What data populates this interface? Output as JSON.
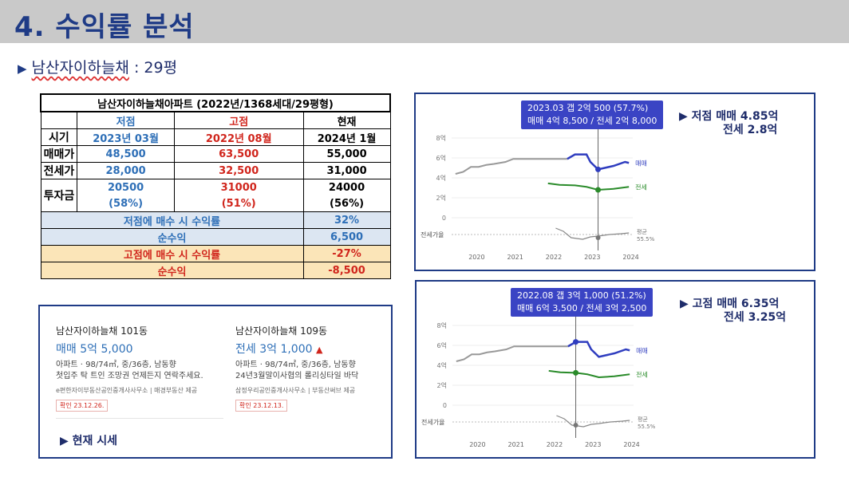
{
  "header": {
    "title": "4. 수익률 분석"
  },
  "subtitle": {
    "marker": "▶",
    "name": "남산자이하늘채",
    "size": ": 29평"
  },
  "table": {
    "title": "남산자이하늘채아파트 (2022년/1368세대/29평형)",
    "col_low": "저점",
    "col_high": "고점",
    "col_now": "현재",
    "row_period": {
      "label": "시기",
      "low": "2023년 03월",
      "high": "2022년 08월",
      "now": "2024년 1월"
    },
    "row_sale": {
      "label": "매매가",
      "low": "48,500",
      "high": "63,500",
      "now": "55,000"
    },
    "row_jeonse": {
      "label": "전세가",
      "low": "28,000",
      "high": "32,500",
      "now": "31,000"
    },
    "row_invest": {
      "label": "투자금",
      "low": "20500",
      "low_pct": "(58%)",
      "high": "31000",
      "high_pct": "(51%)",
      "now": "24000",
      "now_pct": "(56%)"
    },
    "low_return_label": "저점에 매수 시 수익률",
    "low_return_value": "32%",
    "low_net_label": "순수익",
    "low_net_value": "6,500",
    "high_return_label": "고점에 매수 시 수익률",
    "high_return_value": "-27%",
    "high_net_label": "순수익",
    "high_net_value": "-8,500"
  },
  "listings": [
    {
      "title": "남산자이하늘채 101동",
      "price": "매매 5억 5,000",
      "spec": "아파트 · 98/74㎡, 중/36층, 남동향",
      "desc": "첫입주 탁 트인 조망권 언제든지 연락주세요.",
      "agent": "e편한자이부동산공인중개사사무소 | 매경부동산 제공",
      "confirm": "확인 23.12.26."
    },
    {
      "title": "남산자이하늘채 109동",
      "price": "전세 3억 1,000",
      "spec": "아파트 · 98/74㎡, 중/36층, 남동향",
      "desc": "24년3월말이사협의 롤리싱타일 바닥",
      "agent": "삼정우리공인중개사사무소 | 부동산써브 제공",
      "confirm": "확인 23.12.13."
    }
  ],
  "current_label": "▶ 현재 시세",
  "chart_top": {
    "tooltip_line1": "2023.03  갭 2억 500 (57.7%)",
    "tooltip_line2": "매매 4억 8,500 / 전세 2억 8,000",
    "note_line1": "▶ 저점  매매 4.85억",
    "note_line2": "전세  2.8억"
  },
  "chart_bottom": {
    "tooltip_line1": "2022.08  갭 3억 1,000 (51.2%)",
    "tooltip_line2": "매매 6억 3,500 / 전세 3억 2,500",
    "note_line1": "▶ 고점  매매 6.35억",
    "note_line2": "전세  3.25억"
  },
  "chart_data": [
    {
      "type": "line",
      "y_ticks": [
        "8억",
        "6억",
        "4억",
        "2억",
        "0"
      ],
      "x_ticks": [
        "2020",
        "2021",
        "2022",
        "2023",
        "2024"
      ],
      "ylim": [
        0,
        8
      ],
      "series": [
        {
          "name": "매매",
          "color": "#2f3dbf",
          "points": [
            [
              2019.5,
              4.4
            ],
            [
              2019.7,
              4.6
            ],
            [
              2019.9,
              5.1
            ],
            [
              2020.1,
              5.1
            ],
            [
              2020.3,
              5.3
            ],
            [
              2020.5,
              5.4
            ],
            [
              2020.8,
              5.6
            ],
            [
              2021.0,
              5.9
            ],
            [
              2021.5,
              5.9
            ],
            [
              2022.1,
              5.9
            ],
            [
              2022.4,
              5.9
            ],
            [
              2022.6,
              6.35
            ],
            [
              2022.9,
              6.35
            ],
            [
              2023.0,
              5.6
            ],
            [
              2023.2,
              4.85
            ],
            [
              2023.6,
              5.2
            ],
            [
              2023.9,
              5.6
            ],
            [
              2024.0,
              5.5
            ]
          ]
        },
        {
          "name": "전세",
          "color": "#2a8b2a",
          "points": [
            [
              2021.9,
              3.45
            ],
            [
              2022.2,
              3.3
            ],
            [
              2022.6,
              3.25
            ],
            [
              2022.9,
              3.1
            ],
            [
              2023.2,
              2.8
            ],
            [
              2023.6,
              2.9
            ],
            [
              2024.0,
              3.1
            ]
          ]
        }
      ],
      "ratio_label": "전세가율",
      "ratio_avg": "평균 55.5%"
    },
    {
      "type": "line",
      "y_ticks": [
        "8억",
        "6억",
        "4억",
        "2억",
        "0"
      ],
      "x_ticks": [
        "2020",
        "2021",
        "2022",
        "2023",
        "2024"
      ],
      "ylim": [
        0,
        8
      ],
      "series": [
        {
          "name": "매매",
          "color": "#2f3dbf",
          "points": [
            [
              2019.5,
              4.4
            ],
            [
              2019.7,
              4.6
            ],
            [
              2019.9,
              5.1
            ],
            [
              2020.1,
              5.1
            ],
            [
              2020.3,
              5.3
            ],
            [
              2020.5,
              5.4
            ],
            [
              2020.8,
              5.6
            ],
            [
              2021.0,
              5.9
            ],
            [
              2021.5,
              5.9
            ],
            [
              2022.1,
              5.9
            ],
            [
              2022.4,
              5.9
            ],
            [
              2022.6,
              6.35
            ],
            [
              2022.9,
              6.35
            ],
            [
              2023.0,
              5.6
            ],
            [
              2023.2,
              4.85
            ],
            [
              2023.6,
              5.2
            ],
            [
              2023.9,
              5.6
            ],
            [
              2024.0,
              5.5
            ]
          ]
        },
        {
          "name": "전세",
          "color": "#2a8b2a",
          "points": [
            [
              2021.9,
              3.45
            ],
            [
              2022.2,
              3.3
            ],
            [
              2022.6,
              3.25
            ],
            [
              2022.9,
              3.1
            ],
            [
              2023.2,
              2.8
            ],
            [
              2023.6,
              2.9
            ],
            [
              2024.0,
              3.1
            ]
          ]
        }
      ],
      "ratio_label": "전세가율",
      "ratio_avg": "평균 55.5%"
    }
  ]
}
